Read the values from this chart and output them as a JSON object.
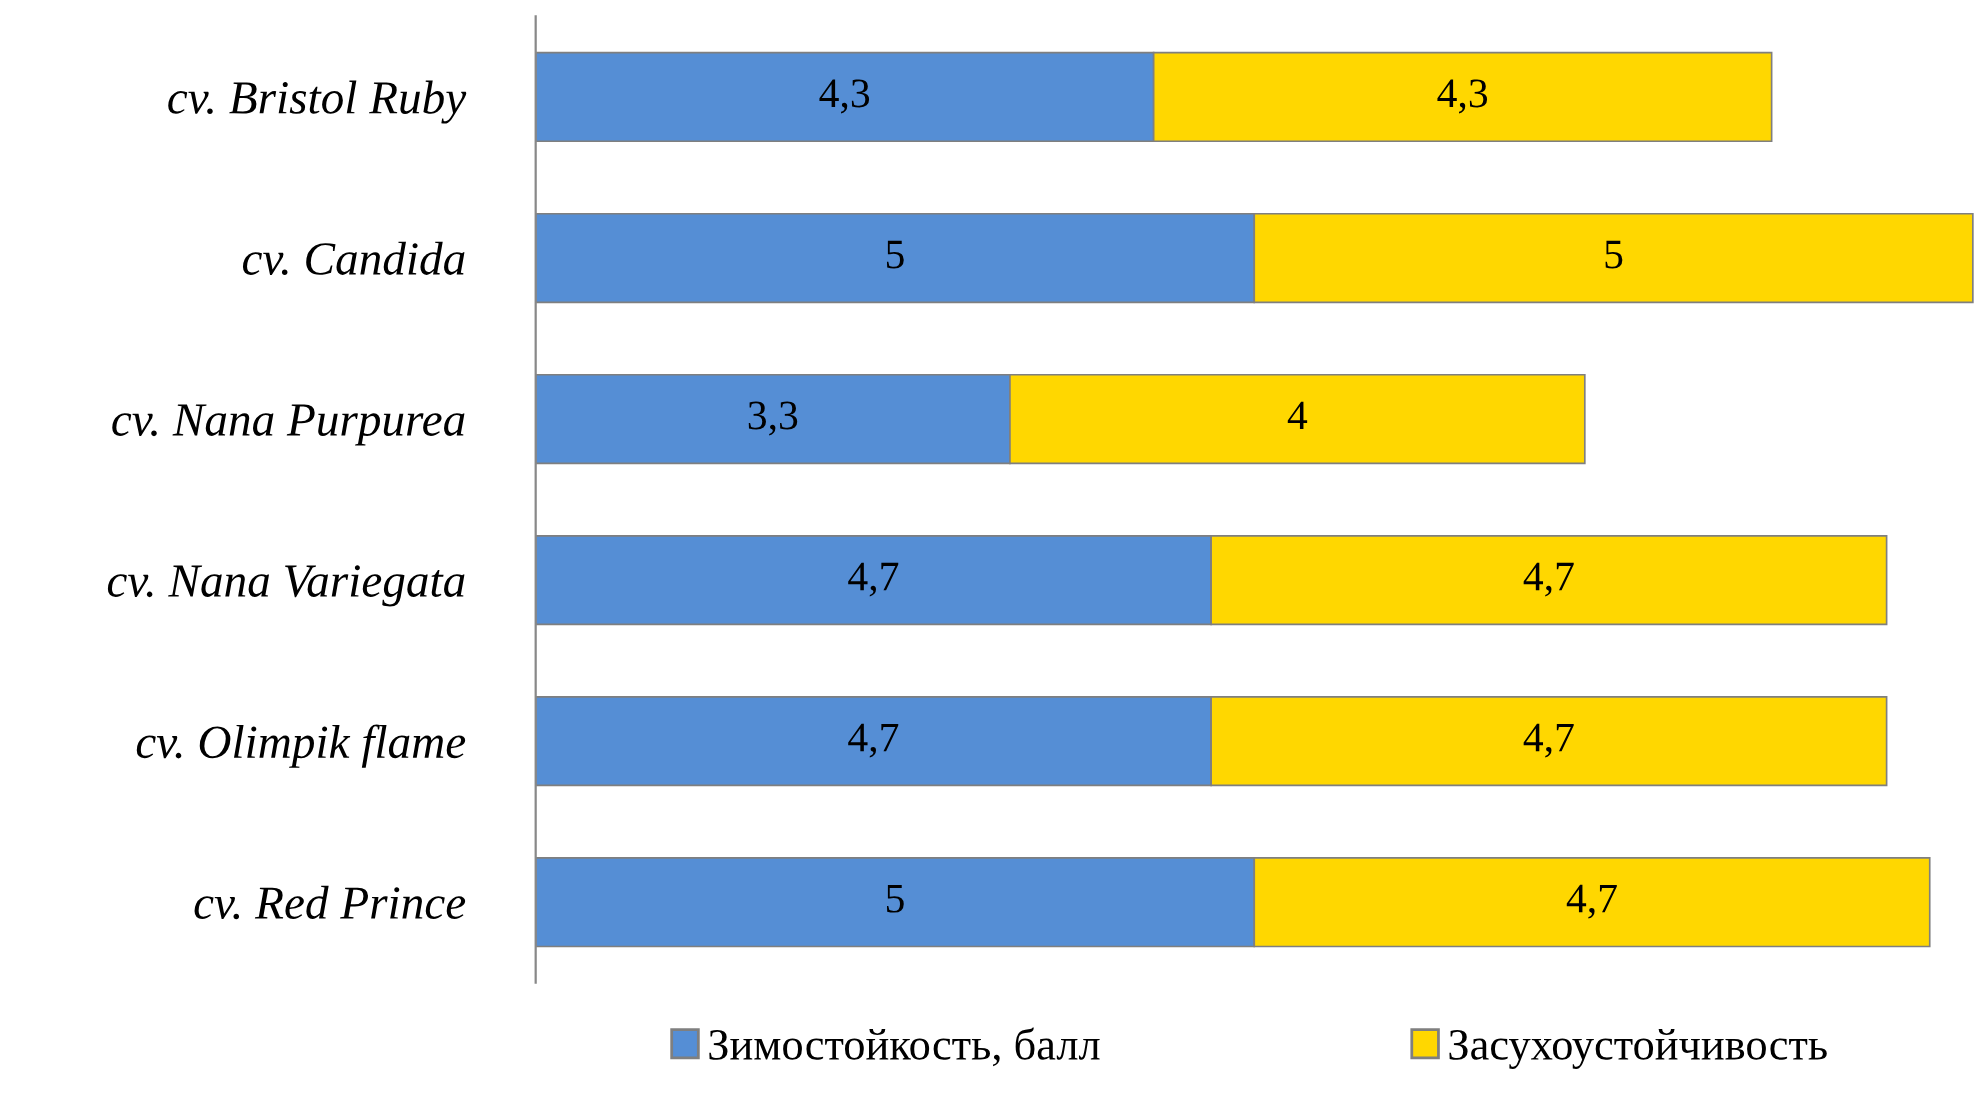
{
  "chart_data": {
    "type": "bar",
    "orientation": "horizontal",
    "stacked": true,
    "categories": [
      "cv. Bristol Ruby",
      "cv. Candida",
      "cv. Nana Purpurea",
      "cv. Nana Variegata",
      "cv. Olimpik flame",
      "cv. Red Prince"
    ],
    "series": [
      {
        "name": "Зимостойкость, балл",
        "color": "#558ed5",
        "values": [
          4.3,
          5,
          3.3,
          4.7,
          4.7,
          5
        ],
        "value_labels": [
          "4,3",
          "5",
          "3,3",
          "4,7",
          "4,7",
          "5"
        ]
      },
      {
        "name": "Засухоустойчивость",
        "color": "#ffd700",
        "values": [
          4.3,
          5,
          4,
          4.7,
          4.7,
          4.7
        ],
        "value_labels": [
          "4,3",
          "5",
          "4",
          "4,7",
          "4,7",
          "4,7"
        ]
      }
    ],
    "legend": "bottom",
    "grid": false
  }
}
